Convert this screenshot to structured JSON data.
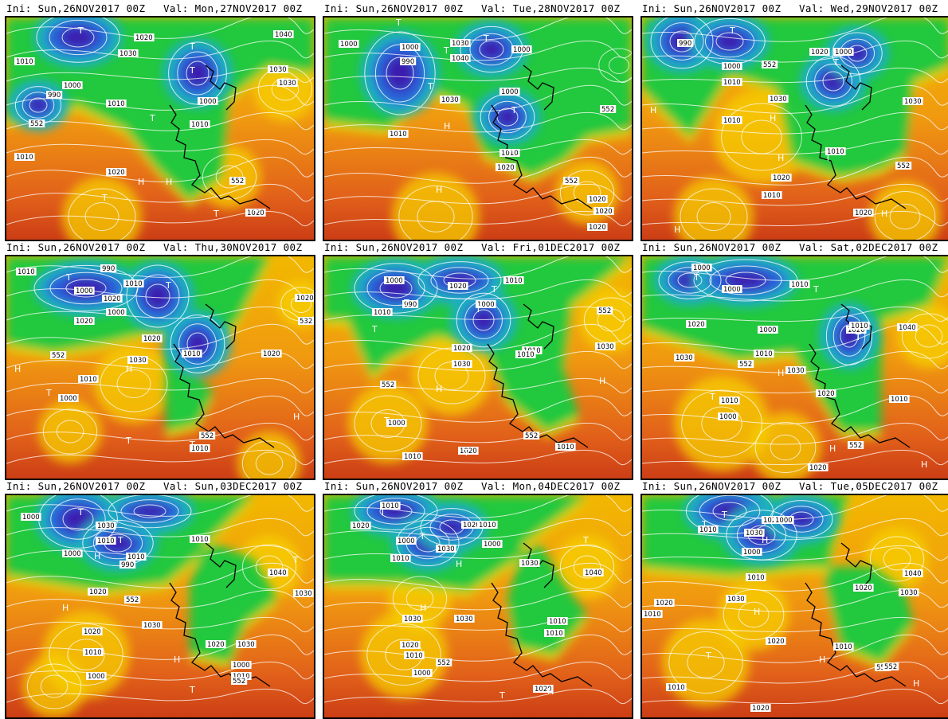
{
  "panels": [
    {
      "ini": "Ini: Sun,26NOV2017 00Z",
      "val": "Val: Mon,27NOV2017 00Z",
      "labels": [
        "1010",
        "1030",
        "1020",
        "1000",
        "990",
        "1010",
        "552",
        "1030",
        "1010",
        "1020",
        "1000",
        "1010",
        "552",
        "1040",
        "1030",
        "1020"
      ],
      "hl": [
        "T",
        "T",
        "T",
        "T",
        "H",
        "H",
        "T",
        "T",
        "T"
      ]
    },
    {
      "ini": "Ini: Sun,26NOV2017 00Z",
      "val": "Val: Tue,28NOV2017 00Z",
      "labels": [
        "1000",
        "1030",
        "1040",
        "1000",
        "990",
        "1000",
        "1010",
        "1030",
        "1000",
        "1010",
        "1020",
        "552",
        "1020",
        "1020",
        "1020",
        "552"
      ],
      "hl": [
        "T",
        "T",
        "H",
        "T",
        "T",
        "H",
        "T",
        "T"
      ]
    },
    {
      "ini": "Ini: Sun,26NOV2017 00Z",
      "val": "Val: Wed,29NOV2017 00Z",
      "labels": [
        "990",
        "1000",
        "1010",
        "552",
        "1030",
        "1020",
        "1000",
        "1010",
        "1010",
        "1020",
        "1010",
        "552",
        "1020",
        "1030"
      ],
      "hl": [
        "T",
        "T",
        "H",
        "H",
        "T",
        "H",
        "H",
        "H"
      ]
    },
    {
      "ini": "Ini: Sun,26NOV2017 00Z",
      "val": "Val: Thu,30NOV2017 00Z",
      "labels": [
        "1010",
        "990",
        "1000",
        "1010",
        "1020",
        "1000",
        "1020",
        "1020",
        "552",
        "1030",
        "1010",
        "1000",
        "1010",
        "1020",
        "552",
        "1010",
        "1020",
        "532"
      ],
      "hl": [
        "T",
        "T",
        "T",
        "H",
        "T",
        "H",
        "T",
        "T",
        "H"
      ]
    },
    {
      "ini": "Ini: Sun,26NOV2017 00Z",
      "val": "Val: Fri,01DEC2017 00Z",
      "labels": [
        "1000",
        "990",
        "1010",
        "1020",
        "1010",
        "1000",
        "1020",
        "1030",
        "552",
        "1010",
        "1000",
        "1010",
        "1020",
        "1010",
        "552",
        "1010",
        "1030",
        "552"
      ],
      "hl": [
        "T",
        "T",
        "T",
        "T",
        "H",
        "T",
        "H",
        "T"
      ]
    },
    {
      "ini": "Ini: Sun,26NOV2017 00Z",
      "val": "Val: Sat,02DEC2017 00Z",
      "labels": [
        "1000",
        "1000",
        "1010",
        "1020",
        "1000",
        "1010",
        "1030",
        "552",
        "1030",
        "1010",
        "1000",
        "1020",
        "1020",
        "1010",
        "1010",
        "552",
        "1020",
        "1040"
      ],
      "hl": [
        "T",
        "T",
        "T",
        "H",
        "T",
        "T",
        "H",
        "H"
      ]
    },
    {
      "ini": "Ini: Sun,26NOV2017 00Z",
      "val": "Val: Sun,03DEC2017 00Z",
      "labels": [
        "1000",
        "1030",
        "1010",
        "1000",
        "1010",
        "990",
        "1010",
        "1020",
        "1030",
        "552",
        "1020",
        "1010",
        "1000",
        "1030",
        "1020",
        "1000",
        "1010",
        "552",
        "1040",
        "1030"
      ],
      "hl": [
        "T",
        "T",
        "H",
        "H",
        "H",
        "T",
        "T"
      ]
    },
    {
      "ini": "Ini: Sun,26NOV2017 00Z",
      "val": "Val: Mon,04DEC2017 00Z",
      "labels": [
        "1010",
        "1020",
        "1000",
        "1010",
        "1020",
        "1030",
        "1010",
        "1000",
        "1030",
        "1030",
        "1020",
        "1010",
        "1000",
        "1030",
        "1010",
        "1010",
        "1040",
        "552",
        "1020"
      ],
      "hl": [
        "T",
        "T",
        "H",
        "H",
        "T",
        "H",
        "T"
      ]
    },
    {
      "ini": "Ini: Sun,26NOV2017 00Z",
      "val": "Val: Tue,05DEC2017 00Z",
      "labels": [
        "1010",
        "1000",
        "1030",
        "1020",
        "1000",
        "1010",
        "1020",
        "1030",
        "1010",
        "1020",
        "1010",
        "552",
        "1040",
        "1020",
        "1030",
        "1010",
        "552",
        "1020"
      ],
      "hl": [
        "T",
        "H",
        "T",
        "H",
        "T",
        "H",
        "H"
      ]
    }
  ]
}
